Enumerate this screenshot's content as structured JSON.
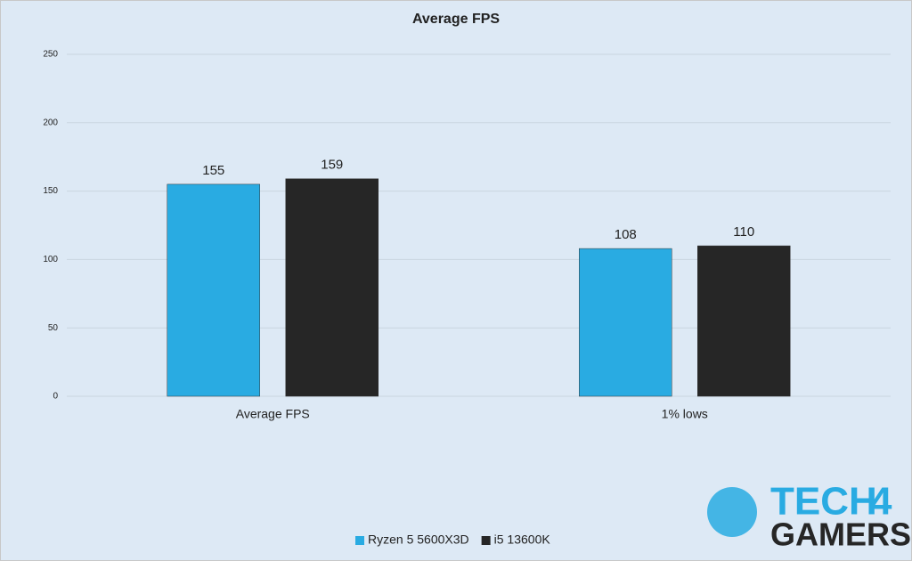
{
  "chart_data": {
    "type": "bar",
    "title": "Average FPS",
    "categories": [
      "Average FPS",
      "1% lows"
    ],
    "series": [
      {
        "name": "Ryzen 5 5600X3D",
        "color": "#29abe2",
        "values": [
          155,
          108
        ]
      },
      {
        "name": "i5 13600K",
        "color": "#262626",
        "values": [
          159,
          110
        ]
      }
    ],
    "ylim": [
      0,
      250
    ],
    "yticks": [
      0,
      50,
      100,
      150,
      200,
      250
    ],
    "grid": true,
    "legend": "bottom"
  },
  "watermark": {
    "lines": [
      "TECH",
      "4",
      "GAMERS"
    ]
  }
}
